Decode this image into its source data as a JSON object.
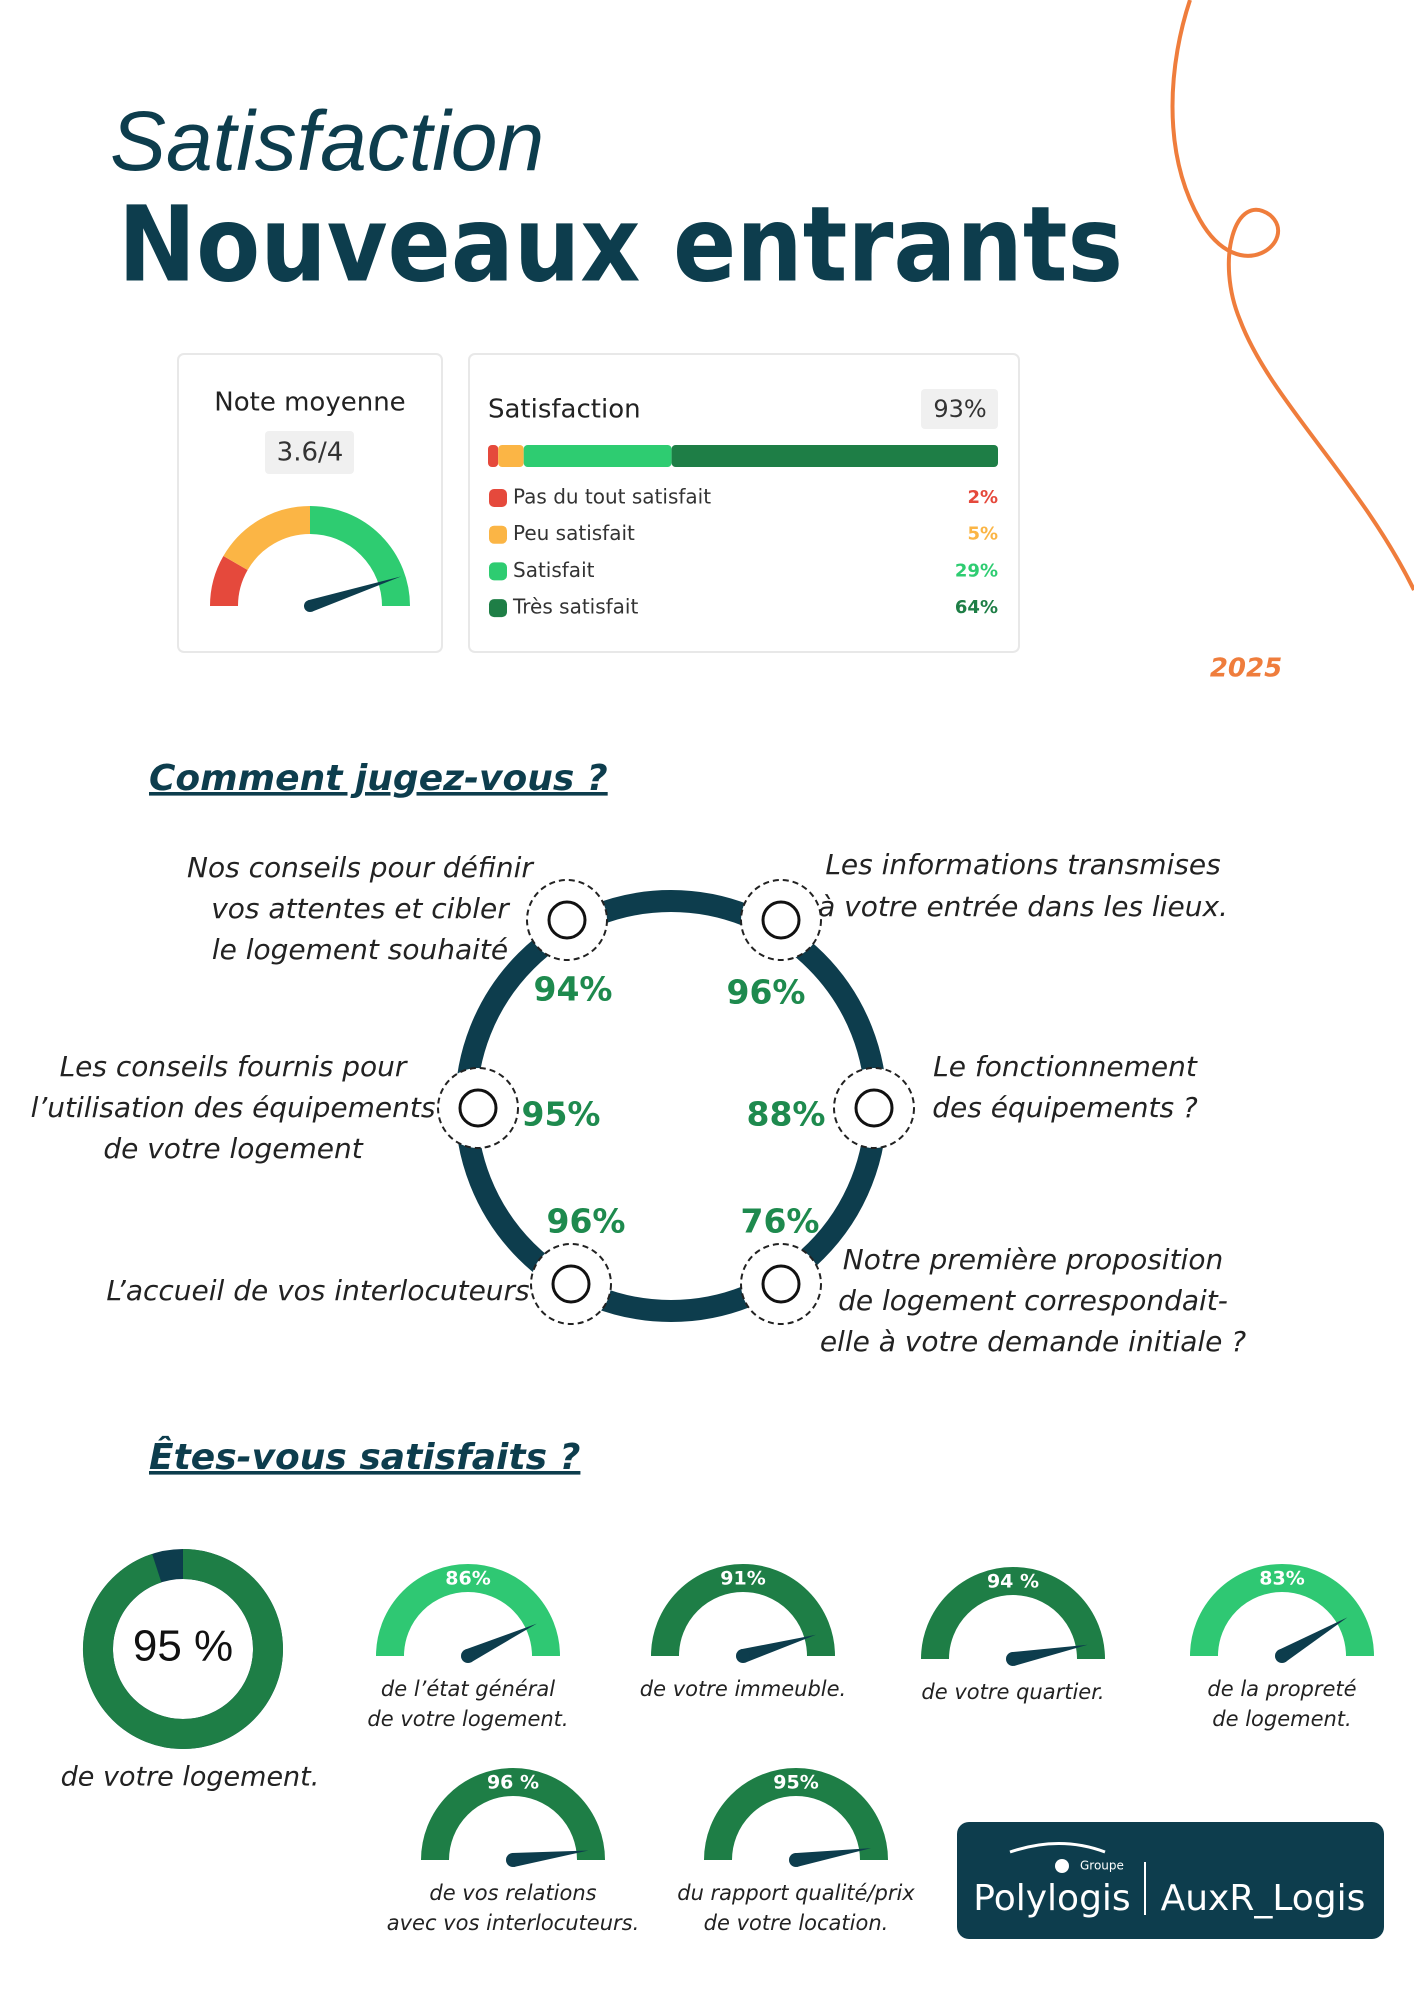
{
  "header": {
    "title_line1": "Satisfaction",
    "title_line2": "Nouveaux entrants",
    "year": "2025"
  },
  "chart_data": [
    {
      "type": "gauge",
      "title": "Note moyenne",
      "value": 3.6,
      "value_label": "3.6/4",
      "ylim": [
        0,
        4
      ]
    },
    {
      "type": "stacked_bar",
      "title": "Satisfaction",
      "total": 93,
      "total_label": "93%",
      "xlim": [
        0,
        100
      ],
      "series": [
        {
          "name": "Pas du tout satisfait",
          "color": "#e5493c",
          "values": [
            2
          ],
          "value_labels": [
            "2%"
          ]
        },
        {
          "name": "Peu satisfait",
          "color": "#fbb545",
          "values": [
            5
          ],
          "value_labels": [
            "5%"
          ]
        },
        {
          "name": "Satisfait",
          "color": "#2ecc71",
          "values": [
            29
          ],
          "value_labels": [
            "29%"
          ]
        },
        {
          "name": "Très satisfait",
          "color": "#1e7e46",
          "values": [
            64
          ],
          "value_labels": [
            "64%"
          ]
        }
      ]
    },
    {
      "type": "donut",
      "value": 95,
      "value_label": "95 %",
      "caption": [
        "de votre logement."
      ],
      "ylim": [
        0,
        100
      ],
      "color": "#1e7e46",
      "rest_color": "#0d3d4d"
    },
    {
      "type": "gauge_pct",
      "value": 86,
      "value_label": "86%",
      "caption": [
        "de l’état général",
        "de votre logement."
      ],
      "ylim": [
        0,
        100
      ],
      "color": "#2fc873"
    },
    {
      "type": "gauge_pct",
      "value": 91,
      "value_label": "91%",
      "caption": [
        "de votre immeuble."
      ],
      "ylim": [
        0,
        100
      ],
      "color": "#1e7e46"
    },
    {
      "type": "gauge_pct",
      "value": 94,
      "value_label": "94 %",
      "caption": [
        "de votre quartier."
      ],
      "ylim": [
        0,
        100
      ],
      "color": "#1e7e46"
    },
    {
      "type": "gauge_pct",
      "value": 83,
      "value_label": "83%",
      "caption": [
        "de la propreté",
        "de logement."
      ],
      "ylim": [
        0,
        100
      ],
      "color": "#2fc873"
    },
    {
      "type": "gauge_pct",
      "value": 96,
      "value_label": "96 %",
      "caption": [
        "de vos relations",
        "avec vos interlocuteurs."
      ],
      "ylim": [
        0,
        100
      ],
      "color": "#1e7e46"
    },
    {
      "type": "gauge_pct",
      "value": 95,
      "value_label": "95%",
      "caption": [
        "du rapport qualité/prix",
        "de votre location."
      ],
      "ylim": [
        0,
        100
      ],
      "color": "#1e7e46"
    }
  ],
  "comment": {
    "title": "Comment jugez-vous ?",
    "items": [
      {
        "label": [
          "Nos conseils pour définir",
          "vos attentes et cibler",
          "le logement souhaité"
        ],
        "value": "94%"
      },
      {
        "label": [
          "Les informations transmises",
          "à votre entrée dans les lieux."
        ],
        "value": "96%"
      },
      {
        "label": [
          "Les conseils fournis pour",
          "l’utilisation des équipements",
          "de votre logement"
        ],
        "value": "95%"
      },
      {
        "label": [
          "Le fonctionnement",
          "des équipements ?"
        ],
        "value": "88%"
      },
      {
        "label": [
          "L’accueil de vos interlocuteurs"
        ],
        "value": "96%"
      },
      {
        "label": [
          "Notre première proposition",
          "de logement correspondait-",
          "elle à votre demande initiale ?"
        ],
        "value": "76%"
      }
    ]
  },
  "satisfied": {
    "title": "Êtes-vous satisfaits ?"
  },
  "footer": {
    "group": "Groupe",
    "brand": "Polylogis",
    "partner": "AuxR_Logis"
  }
}
